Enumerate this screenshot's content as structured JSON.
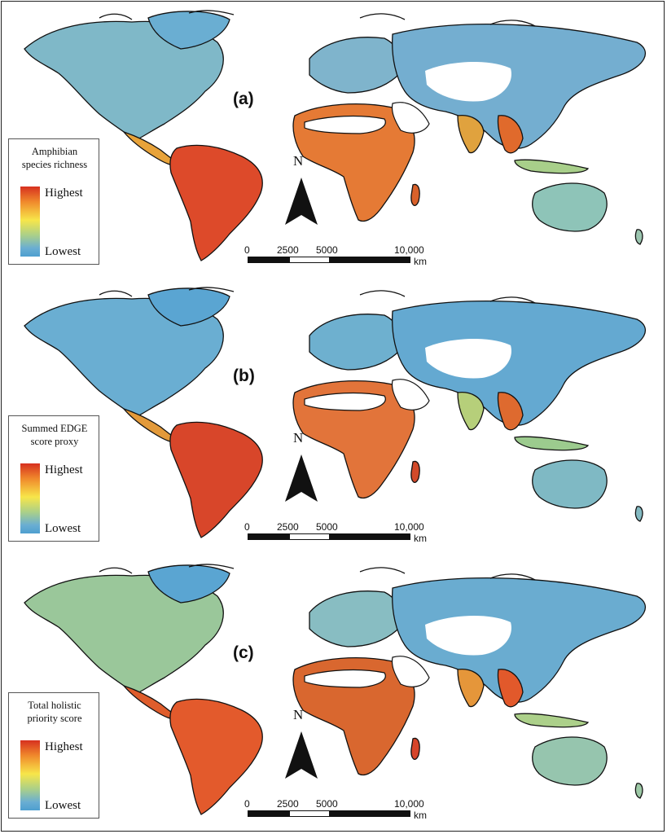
{
  "panels": [
    {
      "letter": "(a)",
      "legend_title_1": "Amphibian",
      "legend_title_2": "species richness",
      "high": "Highest",
      "low": "Lowest"
    },
    {
      "letter": "(b)",
      "legend_title_1": "Summed EDGE",
      "legend_title_2": "score proxy",
      "high": "Highest",
      "low": "Lowest"
    },
    {
      "letter": "(c)",
      "legend_title_1": "Total holistic",
      "legend_title_2": "priority score",
      "high": "Highest",
      "low": "Lowest"
    }
  ],
  "north_label": "N",
  "scale": {
    "t0": "0",
    "t1": "2500",
    "t2": "5000",
    "t3": "10,000",
    "unit": "km"
  },
  "colors": {
    "high": "#d7301f",
    "mid": "#f7e64a",
    "low": "#4e9fd0",
    "border": "#111111"
  }
}
